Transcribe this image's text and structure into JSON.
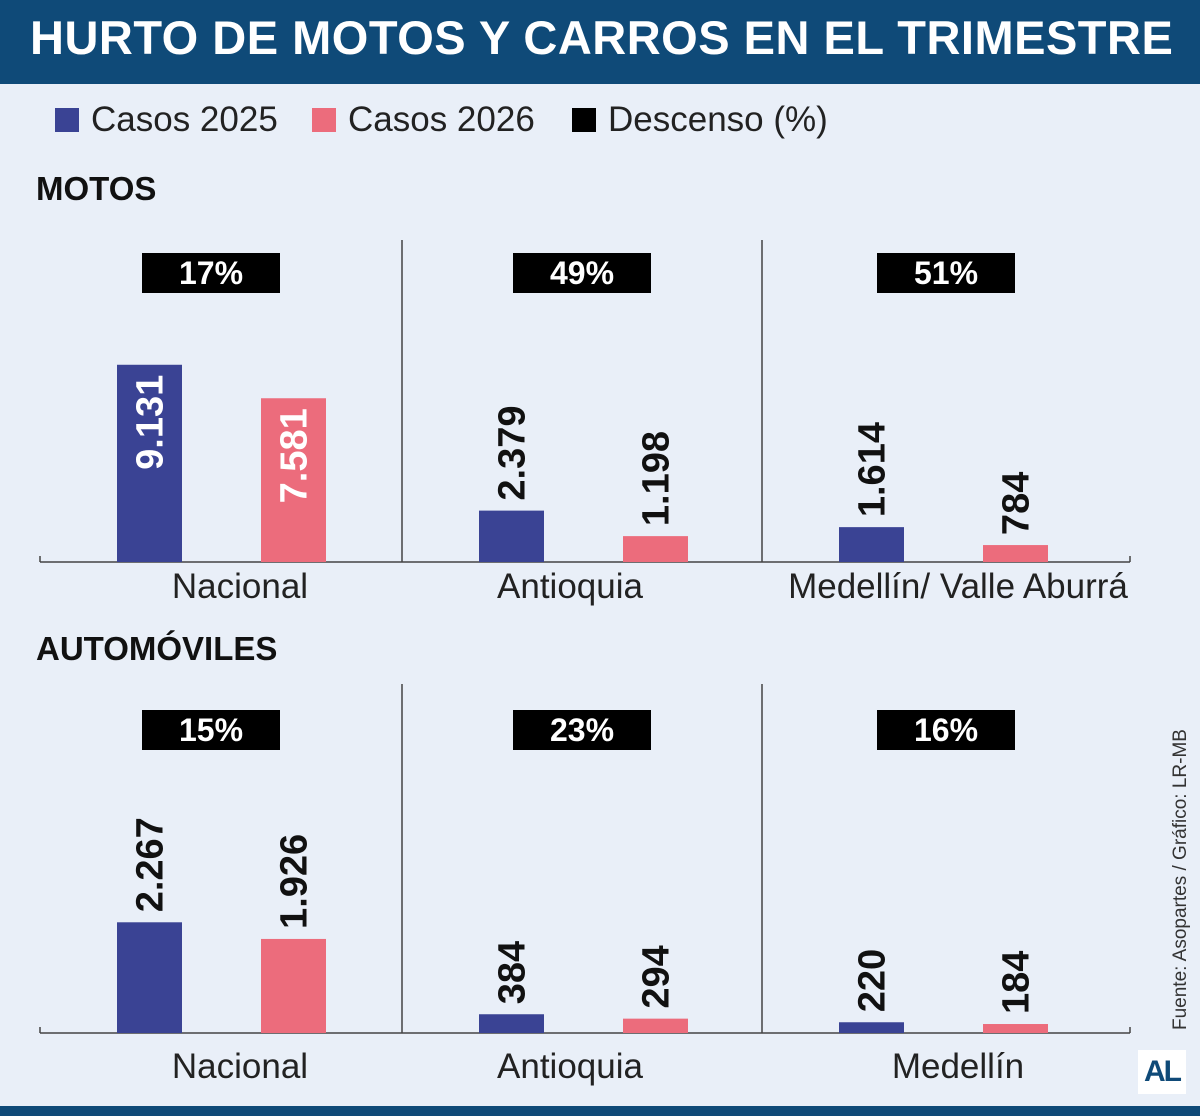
{
  "title": "HURTO DE MOTOS Y CARROS EN EL TRIMESTRE",
  "legend": [
    {
      "label": "Casos 2025",
      "color": "#3a4394"
    },
    {
      "label": "Casos 2026",
      "color": "#ec6c7c"
    },
    {
      "label": "Descenso (%)",
      "color": "#000000"
    }
  ],
  "sections": {
    "motos": "MOTOS",
    "automoviles": "AUTOMÓVILES"
  },
  "chart_data": [
    {
      "type": "bar",
      "title": "MOTOS",
      "categories": [
        "Nacional",
        "Antioquia",
        "Medellín/ Valle Aburrá"
      ],
      "series": [
        {
          "name": "Casos 2025",
          "values": [
            9131,
            2379,
            1614
          ],
          "labels": [
            "9.131",
            "2.379",
            "1.614"
          ],
          "color": "#3a4394"
        },
        {
          "name": "Casos 2026",
          "values": [
            7581,
            1198,
            784
          ],
          "labels": [
            "7.581",
            "1.198",
            "784"
          ],
          "color": "#ec6c7c"
        }
      ],
      "descenso": [
        "17%",
        "49%",
        "51%"
      ],
      "ylim": [
        0,
        12500
      ]
    },
    {
      "type": "bar",
      "title": "AUTOMÓVILES",
      "categories": [
        "Nacional",
        "Antioquia",
        "Medellín"
      ],
      "series": [
        {
          "name": "Casos 2025",
          "values": [
            2267,
            384,
            220
          ],
          "labels": [
            "2.267",
            "384",
            "220"
          ],
          "color": "#3a4394"
        },
        {
          "name": "Casos 2026",
          "values": [
            1926,
            294,
            184
          ],
          "labels": [
            "1.926",
            "294",
            "184"
          ],
          "color": "#ec6c7c"
        }
      ],
      "descenso": [
        "15%",
        "23%",
        "16%"
      ],
      "ylim": [
        0,
        4300
      ]
    }
  ],
  "source": "Fuente: Asopartes / Gráfico: LR-MB",
  "logo": "AL"
}
